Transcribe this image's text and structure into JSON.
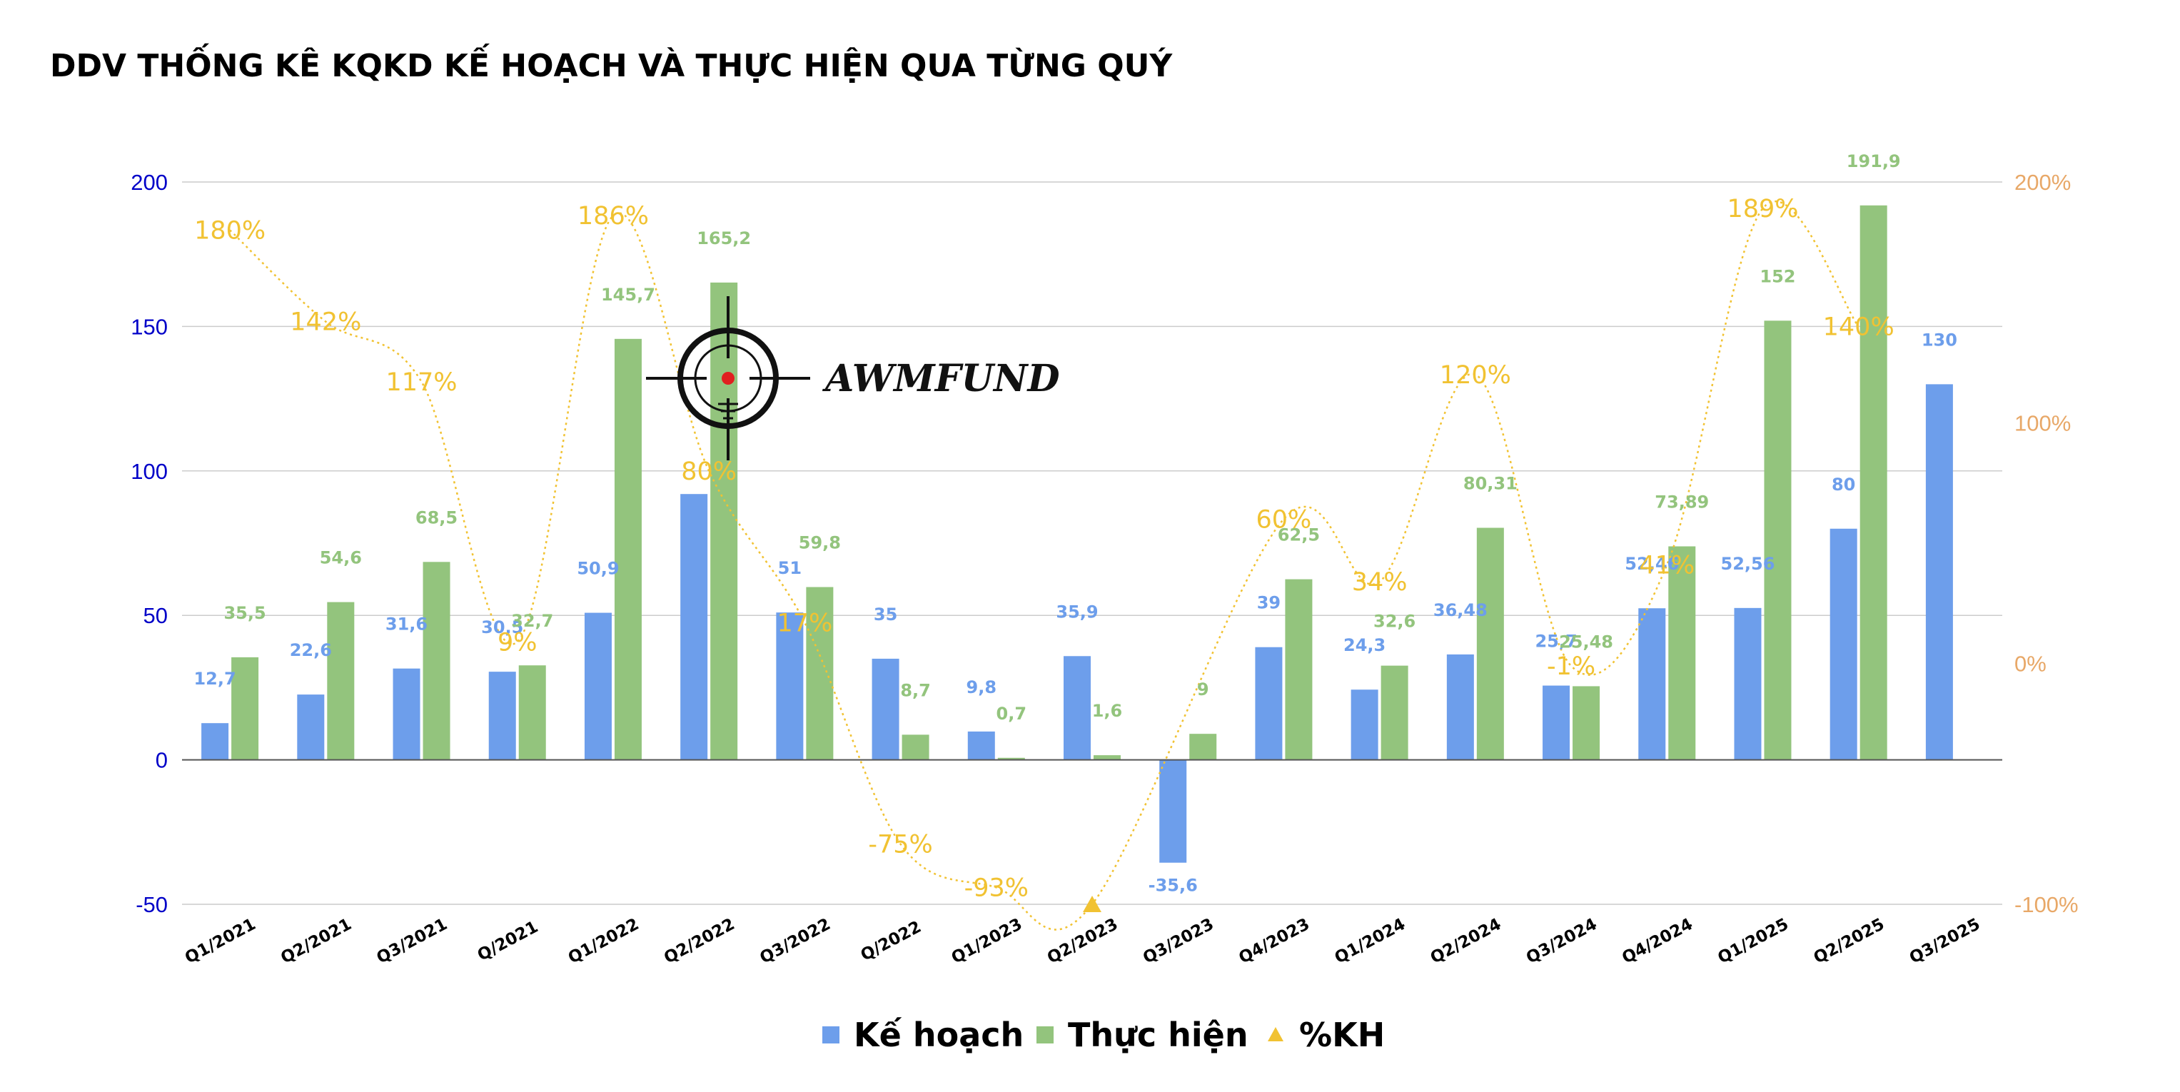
{
  "chart_data": {
    "type": "bar",
    "title": "DDV THỐNG KÊ KQKD KẾ HOẠCH VÀ THỰC HIỆN QUA TỪNG QUÝ",
    "categories": [
      "Q1/2021",
      "Q2/2021",
      "Q3/2021",
      "Q/2021",
      "Q1/2022",
      "Q2/2022",
      "Q3/2022",
      "Q/2022",
      "Q1/2023",
      "Q2/2023",
      "Q3/2023",
      "Q4/2023",
      "Q1/2024",
      "Q2/2024",
      "Q3/2024",
      "Q4/2024",
      "Q1/2025",
      "Q2/2025",
      "Q3/2025"
    ],
    "series": [
      {
        "name": "Kế hoạch",
        "type": "bar",
        "color": "#6d9eeb",
        "values": [
          12.7,
          22.6,
          31.6,
          30.5,
          50.9,
          92,
          51,
          35,
          9.8,
          35.9,
          -35.6,
          39,
          24.3,
          36.48,
          25.7,
          52.46,
          52.56,
          80,
          130
        ],
        "labels": [
          "12,7",
          "22,6",
          "31,6",
          "30,5",
          "50,9",
          "",
          "51",
          "35",
          "9,8",
          "35,9",
          "-35,6",
          "39",
          "24,3",
          "36,48",
          "25,7",
          "52,46",
          "52,56",
          "80",
          "130"
        ]
      },
      {
        "name": "Thực hiện",
        "type": "bar",
        "color": "#93c47d",
        "values": [
          35.5,
          54.6,
          68.5,
          32.7,
          145.7,
          165.2,
          59.8,
          8.7,
          0.7,
          1.6,
          9,
          62.5,
          32.6,
          80.31,
          25.48,
          73.89,
          152,
          191.9,
          null
        ],
        "labels": [
          "35,5",
          "54,6",
          "68,5",
          "32,7",
          "145,7",
          "165,2",
          "59,8",
          "8,7",
          "0,7",
          "1,6",
          "9",
          "62,5",
          "32,6",
          "80,31",
          "25,48",
          "73,89",
          "152",
          "191,9",
          ""
        ]
      },
      {
        "name": "%KH",
        "type": "line",
        "axis": "right",
        "color": "#f1c232",
        "values": [
          180,
          142,
          117,
          9,
          186,
          80,
          17,
          -75,
          -93,
          -100,
          null,
          60,
          34,
          120,
          -1,
          41,
          189,
          140,
          null
        ],
        "labels": [
          "180%",
          "142%",
          "117%",
          "9%",
          "186%",
          "80%",
          "17%",
          "-75%",
          "-93%",
          "",
          "",
          "60%",
          "34%",
          "120%",
          "-1%",
          "41%",
          "189%",
          "140%",
          ""
        ]
      }
    ],
    "y_left": {
      "min": -50,
      "max": 200,
      "ticks": [
        -50,
        0,
        50,
        100,
        150,
        200
      ],
      "tick_labels": [
        "-50",
        "0",
        "50",
        "100",
        "150",
        "200"
      ],
      "color": "#0000c8"
    },
    "y_right": {
      "min": -100,
      "max": 200,
      "ticks": [
        -100,
        0,
        100,
        200
      ],
      "tick_labels": [
        "-100%",
        "0%",
        "100%",
        "200%"
      ],
      "color": "#e8a868"
    },
    "grid": true,
    "legend": {
      "position": "bottom",
      "entries": [
        {
          "label": "Kế hoạch",
          "color": "#6d9eeb",
          "marker": "square"
        },
        {
          "label": "Thực hiện",
          "color": "#93c47d",
          "marker": "square"
        },
        {
          "label": "%KH",
          "color": "#f1c232",
          "marker": "triangle"
        }
      ]
    },
    "watermark": "AWMFUND"
  }
}
